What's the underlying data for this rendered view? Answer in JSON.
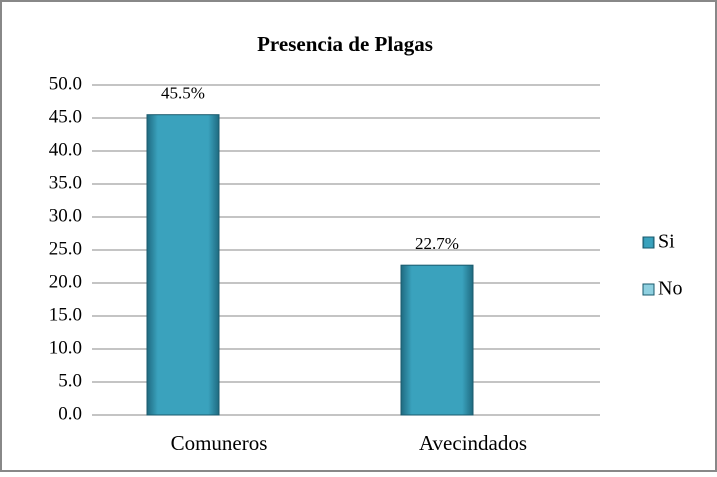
{
  "chart_data": {
    "type": "bar",
    "title": "Presencia de Plagas",
    "categories": [
      "Comuneros",
      "Avecindados"
    ],
    "series": [
      {
        "name": "Si",
        "color": "#2e8fa8",
        "values": [
          45.5,
          22.7
        ],
        "value_labels": [
          "45.5%",
          "22.7%"
        ]
      },
      {
        "name": "No",
        "color": "#8fd0e0",
        "values": [
          null,
          null
        ]
      }
    ],
    "ylim": [
      0,
      50
    ],
    "yticks": [
      {
        "value": 0,
        "label": "0.0"
      },
      {
        "value": 5,
        "label": "5.0"
      },
      {
        "value": 10,
        "label": "10.0"
      },
      {
        "value": 15,
        "label": "15.0"
      },
      {
        "value": 20,
        "label": "20.0"
      },
      {
        "value": 25,
        "label": "25.0"
      },
      {
        "value": 30,
        "label": "30.0"
      },
      {
        "value": 35,
        "label": "35.0"
      },
      {
        "value": 40,
        "label": "40.0"
      },
      {
        "value": 45,
        "label": "45.0"
      },
      {
        "value": 50,
        "label": "50.0"
      }
    ],
    "grid": true,
    "legend": "right"
  }
}
